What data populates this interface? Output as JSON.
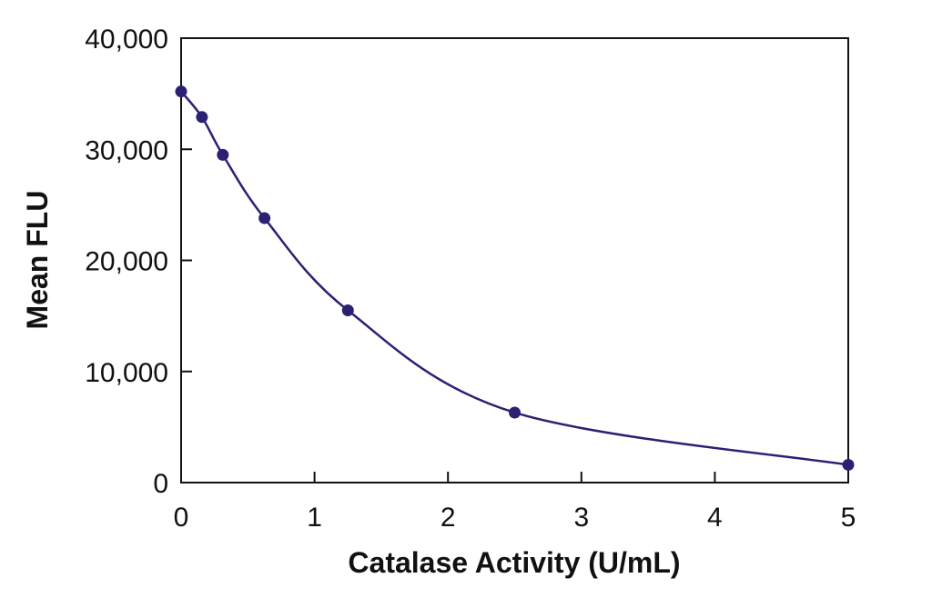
{
  "chart_data": {
    "type": "scatter",
    "title": "",
    "xlabel": "Catalase Activity (U/mL)",
    "ylabel": "Mean FLU",
    "xlim": [
      0,
      5
    ],
    "ylim": [
      0,
      40000
    ],
    "x_ticks": [
      "0",
      "1",
      "2",
      "3",
      "4",
      "5"
    ],
    "y_ticks": [
      "0",
      "10,000",
      "20,000",
      "30,000",
      "40,000"
    ],
    "x_tick_values": [
      0,
      1,
      2,
      3,
      4,
      5
    ],
    "y_tick_values": [
      0,
      10000,
      20000,
      30000,
      40000
    ],
    "grid": false,
    "series": [
      {
        "x": [
          0,
          0.156,
          0.3125,
          0.625,
          1.25,
          2.5,
          5
        ],
        "y": [
          35200,
          32900,
          29500,
          23800,
          15500,
          6300,
          1600
        ],
        "fit_curve": true
      }
    ],
    "colors": {
      "series": "#2b2173",
      "axis": "#111111"
    }
  }
}
